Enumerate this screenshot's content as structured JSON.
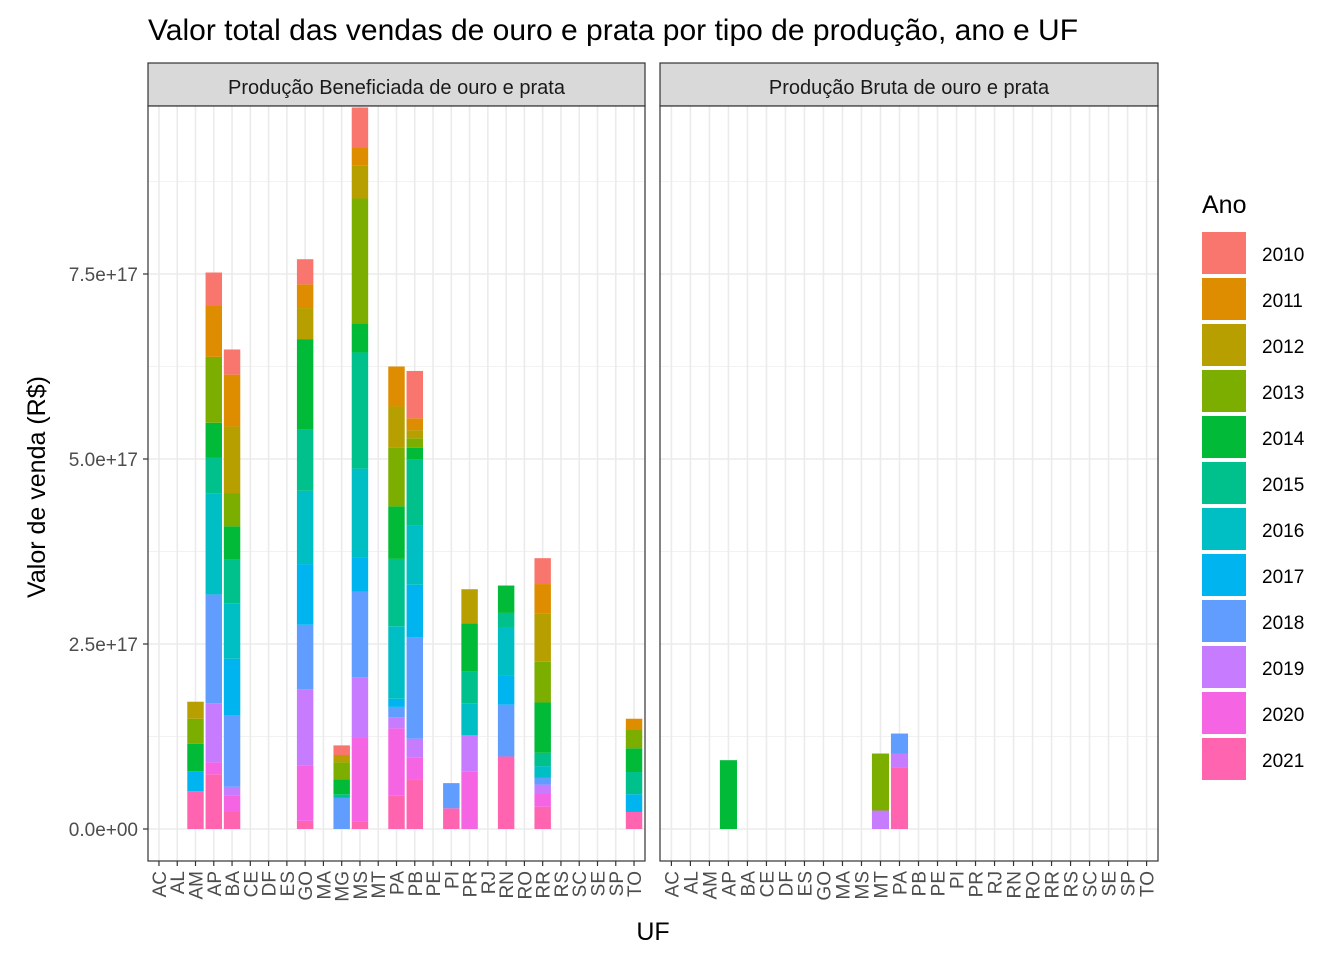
{
  "chart_data": {
    "type": "bar",
    "stacked": true,
    "title": "Valor total das vendas de ouro e prata por tipo de produção, ano e UF",
    "xlabel": "UF",
    "ylabel": "Valor de venda (R$)",
    "ylim": [
      0,
      1e+18
    ],
    "y_ticks": [
      0,
      2.5e+17,
      5e+17,
      7.5e+17
    ],
    "y_tick_labels": [
      "0.0e+00",
      "2.5e+17",
      "5.0e+17",
      "7.5e+17"
    ],
    "grid": true,
    "legend": {
      "title": "Ano",
      "position": "right",
      "entries": [
        "2010",
        "2011",
        "2012",
        "2013",
        "2014",
        "2015",
        "2016",
        "2017",
        "2018",
        "2019",
        "2020",
        "2021"
      ],
      "colors": [
        "#F8766D",
        "#DE8C00",
        "#B79F00",
        "#7CAE00",
        "#00BA38",
        "#00C08B",
        "#00BFC4",
        "#00B4F0",
        "#619CFF",
        "#C77CFF",
        "#F564E3",
        "#FF64B0"
      ]
    },
    "panels": [
      {
        "label": "Produção Beneficiada de ouro e prata",
        "categories": [
          "AC",
          "AL",
          "AM",
          "AP",
          "BA",
          "CE",
          "DF",
          "ES",
          "GO",
          "MA",
          "MG",
          "MS",
          "MT",
          "PA",
          "PB",
          "PE",
          "PI",
          "PR",
          "RJ",
          "RN",
          "RO",
          "RR",
          "RS",
          "SC",
          "SE",
          "SP",
          "TO"
        ],
        "series": [
          {
            "name": "2010",
            "values": [
              0,
              0,
              0,
              4.4e+16,
              3.4e+16,
              0,
              0,
              0,
              3.4e+16,
              0,
              1.3e+16,
              5.4e+16,
              0,
              0,
              6.4e+16,
              0,
              0,
              0,
              0,
              0,
              0,
              3.5e+16,
              0,
              0,
              0,
              0,
              0
            ]
          },
          {
            "name": "2011",
            "values": [
              0,
              0,
              0,
              7e+16,
              7e+16,
              0,
              0,
              0,
              3.2e+16,
              0,
              0,
              2.4e+16,
              0,
              5.4e+16,
              1.6e+16,
              0,
              0,
              0,
              0,
              0,
              0,
              4e+16,
              0,
              0,
              0,
              0,
              1.4e+16
            ]
          },
          {
            "name": "2012",
            "values": [
              0,
              0,
              2.3e+16,
              0,
              9e+16,
              0,
              0,
              0,
              4.2e+16,
              0,
              1e+16,
              4.5e+16,
              0,
              5.6e+16,
              1.1e+16,
              0,
              0,
              4.6e+16,
              0,
              0,
              0,
              6.5e+16,
              0,
              0,
              0,
              0,
              0
            ]
          },
          {
            "name": "2013",
            "values": [
              0,
              0,
              3.4e+16,
              8.9e+16,
              4.5e+16,
              0,
              0,
              0,
              0,
              0,
              2.3e+16,
              1.69e+17,
              0,
              7.9e+16,
              1.3e+16,
              0,
              0,
              0,
              0,
              0,
              0,
              5.5e+16,
              0,
              0,
              0,
              0,
              2.6e+16
            ]
          },
          {
            "name": "2014",
            "values": [
              0,
              0,
              3.7e+16,
              4.7e+16,
              4.5e+16,
              0,
              0,
              0,
              1.22e+17,
              0,
              2e+16,
              3.9e+16,
              0,
              7.1e+16,
              1.6e+16,
              0,
              0,
              6.5e+16,
              0,
              3.7e+16,
              0,
              6.8e+16,
              0,
              0,
              0,
              0,
              3.2e+16
            ]
          },
          {
            "name": "2015",
            "values": [
              0,
              0,
              0,
              4.9e+16,
              5.9e+16,
              0,
              0,
              0,
              8.3e+16,
              0,
              5000000000000000.0,
              1.57e+17,
              0,
              9.1e+16,
              8.9e+16,
              0,
              0,
              4.3e+16,
              0,
              1.9e+16,
              0,
              1.8e+16,
              0,
              0,
              0,
              0,
              3e+16
            ]
          },
          {
            "name": "2016",
            "values": [
              0,
              0,
              0,
              1.36e+17,
              7.5e+16,
              0,
              0,
              0,
              9.9e+16,
              0,
              0,
              1.2e+17,
              0,
              9.8e+16,
              8e+16,
              0,
              0,
              4.3e+16,
              0,
              6.5e+16,
              0,
              1.6e+16,
              0,
              0,
              0,
              0,
              0
            ]
          },
          {
            "name": "2017",
            "values": [
              0,
              0,
              2.7e+16,
              0,
              7.6e+16,
              0,
              0,
              0,
              8.2e+16,
              0,
              0,
              4.6e+16,
              0,
              1.1e+16,
              7.1e+16,
              0,
              0,
              0,
              0,
              4e+16,
              0,
              0,
              0,
              0,
              0,
              0,
              2.4e+16
            ]
          },
          {
            "name": "2018",
            "values": [
              0,
              0,
              0,
              1.47e+17,
              9.7e+16,
              0,
              0,
              0,
              8.7e+16,
              0,
              4.2e+16,
              1.16e+17,
              0,
              1.4e+16,
              1.37e+17,
              0,
              3.4e+16,
              0,
              0,
              7e+16,
              0,
              9000000000000000.0,
              0,
              0,
              0,
              0,
              0
            ]
          },
          {
            "name": "2019",
            "values": [
              0,
              0,
              0,
              8e+16,
              1.2e+16,
              0,
              0,
              0,
              1.03e+17,
              0,
              0,
              8.2e+16,
              0,
              1.5e+16,
              2.5e+16,
              0,
              0,
              4.9e+16,
              0,
              0,
              0,
              1.2e+16,
              0,
              0,
              0,
              0,
              0
            ]
          },
          {
            "name": "2020",
            "values": [
              0,
              0,
              0,
              1.6e+16,
              2.2e+16,
              0,
              0,
              0,
              7.5e+16,
              0,
              0,
              1.13e+17,
              0,
              9.1e+16,
              3e+16,
              0,
              0,
              7.8e+16,
              0,
              0,
              0,
              1.8e+16,
              0,
              0,
              0,
              0,
              0
            ]
          },
          {
            "name": "2021",
            "values": [
              0,
              0,
              5.1e+16,
              7.4e+16,
              2.3e+16,
              0,
              0,
              0,
              1.1e+16,
              0,
              0,
              1e+16,
              0,
              4.5e+16,
              6.7e+16,
              0,
              2.8e+16,
              0,
              0,
              9.8e+16,
              0,
              3e+16,
              0,
              0,
              0,
              0,
              2.3e+16
            ]
          }
        ]
      },
      {
        "label": "Produção Bruta de ouro e prata",
        "categories": [
          "AC",
          "AL",
          "AM",
          "AP",
          "BA",
          "CE",
          "DF",
          "ES",
          "GO",
          "MA",
          "MS",
          "MT",
          "PA",
          "PB",
          "PE",
          "PI",
          "PR",
          "RJ",
          "RN",
          "RO",
          "RR",
          "RS",
          "SC",
          "SE",
          "SP",
          "TO"
        ],
        "series": [
          {
            "name": "2010",
            "values": [
              0,
              0,
              0,
              0,
              0,
              0,
              0,
              0,
              0,
              0,
              0,
              0,
              0,
              0,
              0,
              0,
              0,
              0,
              0,
              0,
              0,
              0,
              0,
              0,
              0,
              0
            ]
          },
          {
            "name": "2011",
            "values": [
              0,
              0,
              0,
              0,
              0,
              0,
              0,
              0,
              0,
              0,
              0,
              0,
              0,
              0,
              0,
              0,
              0,
              0,
              0,
              0,
              0,
              0,
              0,
              0,
              0,
              0
            ]
          },
          {
            "name": "2012",
            "values": [
              0,
              0,
              0,
              0,
              0,
              0,
              0,
              0,
              0,
              0,
              0,
              0,
              0,
              0,
              0,
              0,
              0,
              0,
              0,
              0,
              0,
              0,
              0,
              0,
              0,
              0
            ]
          },
          {
            "name": "2013",
            "values": [
              0,
              0,
              0,
              0,
              0,
              0,
              0,
              0,
              0,
              0,
              0,
              7.7e+16,
              0,
              0,
              0,
              0,
              0,
              0,
              0,
              0,
              0,
              0,
              0,
              0,
              0,
              0
            ]
          },
          {
            "name": "2014",
            "values": [
              0,
              0,
              0,
              9.3e+16,
              0,
              0,
              0,
              0,
              0,
              0,
              0,
              0,
              0,
              0,
              0,
              0,
              0,
              0,
              0,
              0,
              0,
              0,
              0,
              0,
              0,
              0
            ]
          },
          {
            "name": "2015",
            "values": [
              0,
              0,
              0,
              0,
              0,
              0,
              0,
              0,
              0,
              0,
              0,
              0,
              0,
              0,
              0,
              0,
              0,
              0,
              0,
              0,
              0,
              0,
              0,
              0,
              0,
              0
            ]
          },
          {
            "name": "2016",
            "values": [
              0,
              0,
              0,
              0,
              0,
              0,
              0,
              0,
              0,
              0,
              0,
              0,
              0,
              0,
              0,
              0,
              0,
              0,
              0,
              0,
              0,
              0,
              0,
              0,
              0,
              0
            ]
          },
          {
            "name": "2017",
            "values": [
              0,
              0,
              0,
              0,
              0,
              0,
              0,
              0,
              0,
              0,
              0,
              0,
              0,
              0,
              0,
              0,
              0,
              0,
              0,
              0,
              0,
              0,
              0,
              0,
              0,
              0
            ]
          },
          {
            "name": "2018",
            "values": [
              0,
              0,
              0,
              0,
              0,
              0,
              0,
              0,
              0,
              0,
              0,
              0,
              2.7e+16,
              0,
              0,
              0,
              0,
              0,
              0,
              0,
              0,
              0,
              0,
              0,
              0,
              0
            ]
          },
          {
            "name": "2019",
            "values": [
              0,
              0,
              0,
              0,
              0,
              0,
              0,
              0,
              0,
              0,
              0,
              2.5e+16,
              1.9e+16,
              0,
              0,
              0,
              0,
              0,
              0,
              0,
              0,
              0,
              0,
              0,
              0,
              0
            ]
          },
          {
            "name": "2020",
            "values": [
              0,
              0,
              0,
              0,
              0,
              0,
              0,
              0,
              0,
              0,
              0,
              0,
              0,
              0,
              0,
              0,
              0,
              0,
              0,
              0,
              0,
              0,
              0,
              0,
              0,
              0
            ]
          },
          {
            "name": "2021",
            "values": [
              0,
              0,
              0,
              0,
              0,
              0,
              0,
              0,
              0,
              0,
              0,
              0,
              8.3e+16,
              0,
              0,
              0,
              0,
              0,
              0,
              0,
              0,
              0,
              0,
              0,
              0,
              0
            ]
          }
        ]
      }
    ]
  }
}
